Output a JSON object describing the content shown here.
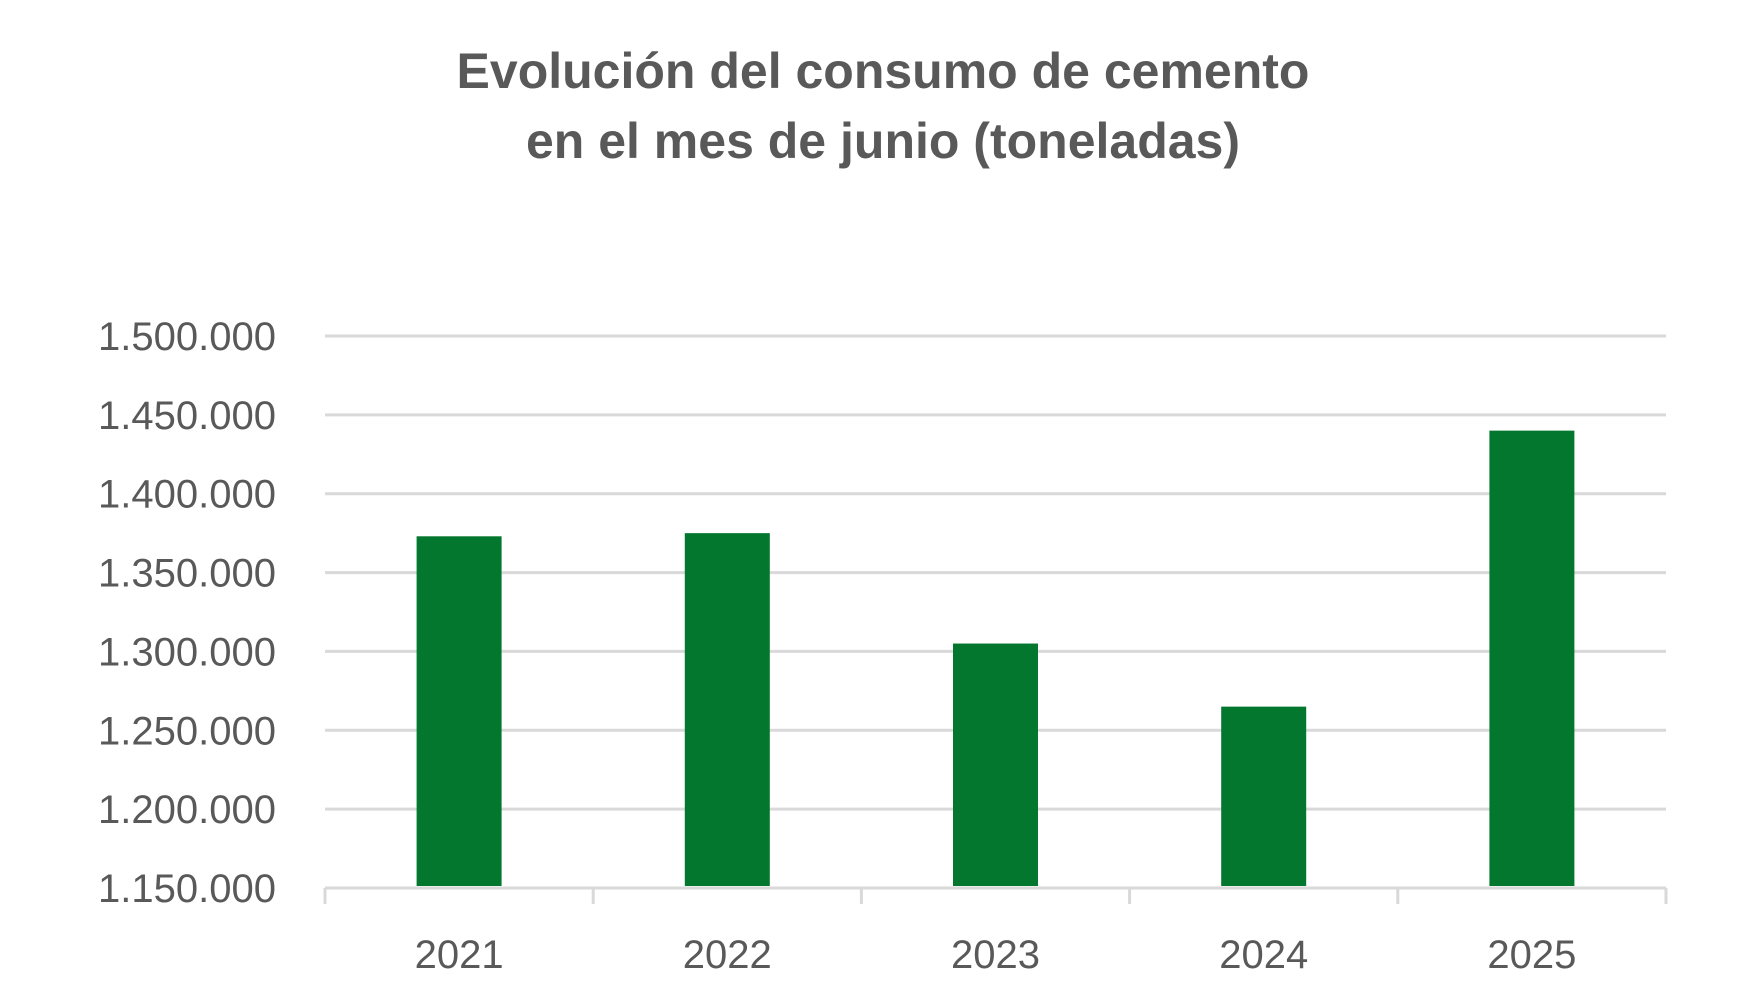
{
  "chart_data": {
    "type": "bar",
    "title": [
      "Evolución del consumo de cemento",
      "en el mes de junio (toneladas)"
    ],
    "categories": [
      "2021",
      "2022",
      "2023",
      "2024",
      "2025"
    ],
    "values": [
      1373000,
      1375000,
      1305000,
      1265000,
      1440000
    ],
    "xlabel": "",
    "ylabel": "",
    "ylim": [
      1150000,
      1500000
    ],
    "yticks": [
      1150000,
      1200000,
      1250000,
      1300000,
      1350000,
      1400000,
      1450000,
      1500000
    ],
    "ytick_labels": [
      "1.150.000",
      "1.200.000",
      "1.250.000",
      "1.300.000",
      "1.350.000",
      "1.400.000",
      "1.450.000",
      "1.500.000"
    ],
    "grid": true,
    "legend": "none",
    "colors": {
      "bar": "#03772E",
      "grid": "#D9D9D9",
      "text": "#595959"
    }
  }
}
